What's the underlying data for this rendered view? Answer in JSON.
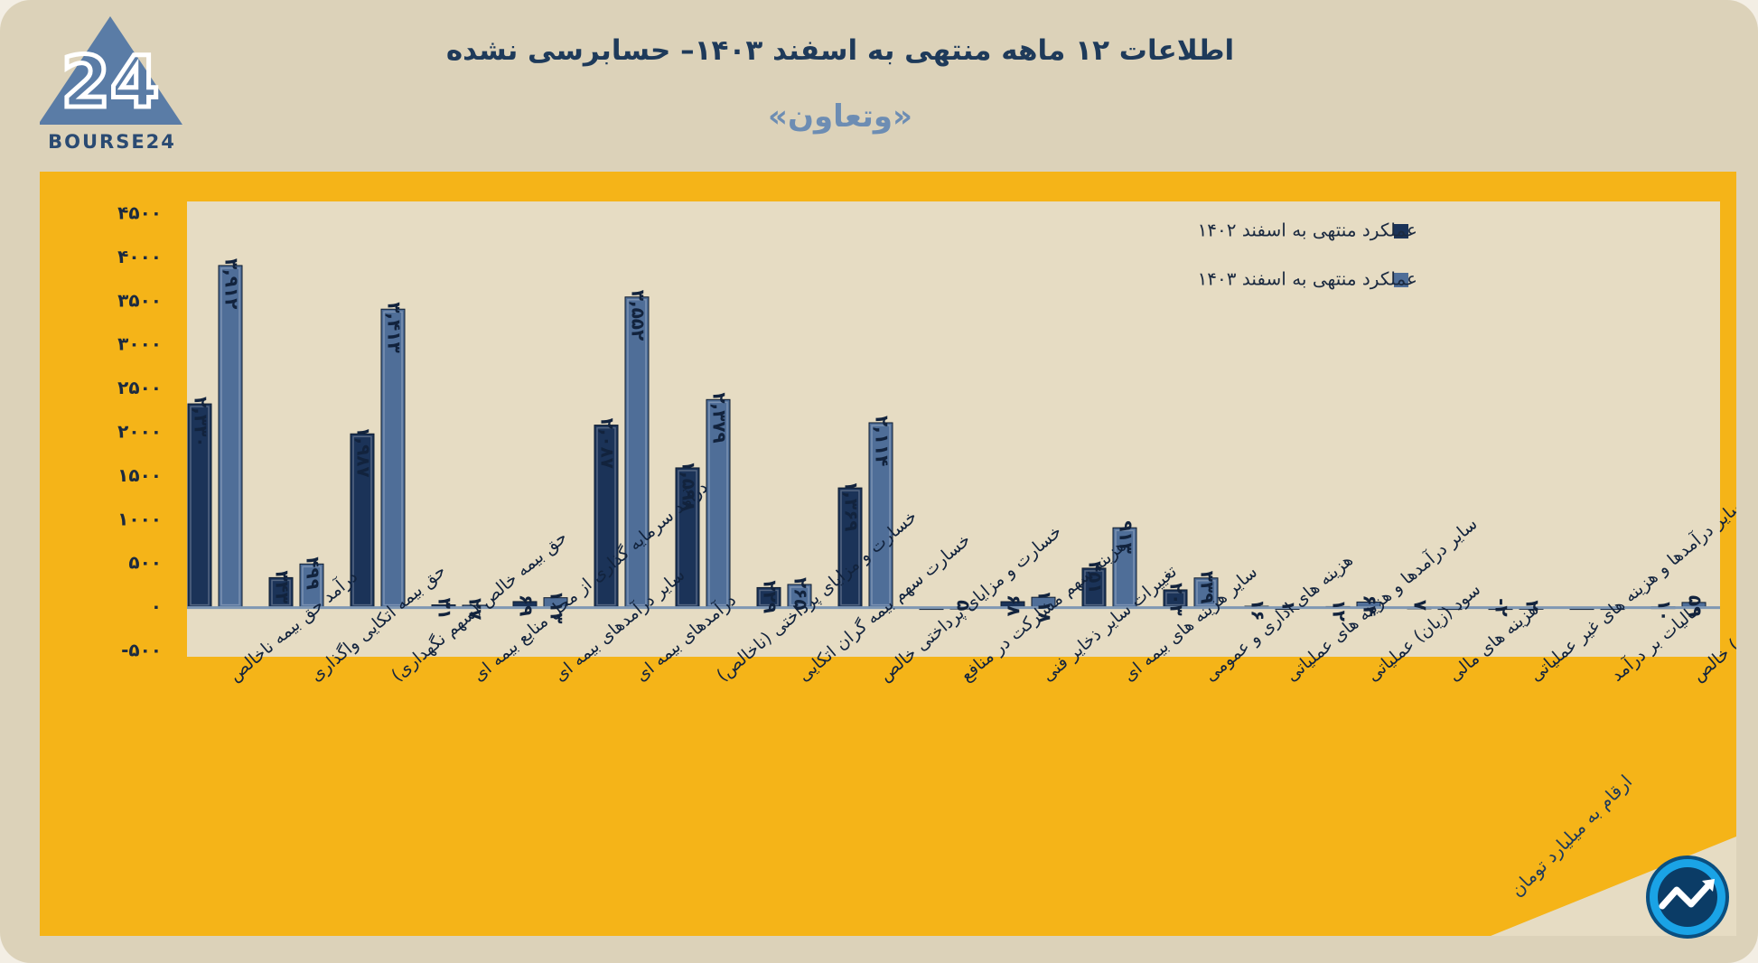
{
  "title": "اطلاعات ۱۲ ماهه منتهی به اسفند  ۱۴۰۳– حسابرسی نشده",
  "subtitle": "«وتعاون»",
  "brand": {
    "logo_text": "BOURSE24",
    "logo_numeral": "24"
  },
  "footnote": "ارقام به میلیارد تومان",
  "colors": {
    "frame": "#dcd2b9",
    "panel": "#f5b418",
    "plot": "#e6dcc3",
    "series_1402": "#1b3358",
    "series_1403": "#4f6e98",
    "title": "#1e3a5a",
    "subtitle": "#6d8db3"
  },
  "chart_data": {
    "type": "bar",
    "title": "",
    "xlabel": "",
    "ylabel": "",
    "ylim": [
      -500,
      4500
    ],
    "yticks": [
      -500,
      0,
      500,
      1000,
      1500,
      2000,
      2500,
      3000,
      3500,
      4000,
      4500
    ],
    "ytick_labels": [
      "-۵۰۰",
      "۰",
      "۵۰۰",
      "۱۰۰۰",
      "۱۵۰۰",
      "۲۰۰۰",
      "۲۵۰۰",
      "۳۰۰۰",
      "۳۵۰۰",
      "۴۰۰۰",
      "۴۵۰۰"
    ],
    "legend_position": "top-right",
    "categories": [
      "درآمد حق بیمه ناخالص",
      "حق بیمه اتکایی واگذاری",
      "حق بیمه خالص (سهم نگهداری)",
      "درآمد سرمایه گذاری از محل منابع بیمه ای",
      "سایر درآمدهای بیمه ای",
      "درآمدهای بیمه ای",
      "خسارت و مزایای پرداختی (ناخالص)",
      "خسارت سهم بیمه گران اتکایی",
      "خسارت و مزایای پرداختی خالص",
      "هزینه سهم مشارکت در منافع",
      "تغییرات سایر ذخایر فنی",
      "سایر هزینه های بیمه ای",
      "هزینه های اداری و عمومی",
      "سایر درآمدها و هزینه های عملیاتی",
      "سود (زیان) عملیاتی",
      "هزینه های مالی",
      "سایر درآمدها و هزینه های غیر عملیاتی",
      "مالیات بر درآمد",
      "سود (زیان) خالص"
    ],
    "series": [
      {
        "name": "عملکرد منتهی به اسفند ۱۴۰۲",
        "values": [
          2330,
          343,
          1987,
          31,
          69,
          2087,
          1598,
          229,
          1369,
          0,
          68,
          451,
          203,
          16,
          12,
          7,
          -2,
          0,
          10
        ],
        "labels": [
          "۲,۳۳۰",
          "۳۴۳",
          "۱,۹۸۷",
          "۳۱",
          "۶۹",
          "۲,۰۸۷",
          "۱,۵۹۸",
          "۲۲۹",
          "۱,۳۶۹",
          "",
          "۶۸",
          "۴۵۱",
          "۲۰۳",
          "۱۶",
          "۱۲",
          "۷",
          "-۲",
          "",
          "۱۰"
        ]
      },
      {
        "name": "عملکرد منتهی به اسفند ۱۴۰۳",
        "values": [
          3912,
          499,
          3413,
          27,
          113,
          3552,
          2379,
          265,
          2114,
          5,
          118,
          913,
          339,
          1,
          64,
          0,
          2,
          0,
          59
        ],
        "labels": [
          "۳,۹۱۲",
          "۴۹۹",
          "۳,۴۱۳",
          "۲۷",
          "۱۱۳",
          "۳,۵۵۲",
          "۲,۳۷۹",
          "۲۶۵",
          "۲,۱۱۴",
          "۵",
          "۱۱۸",
          "۹۱۳",
          "۳۳۹",
          "۱",
          "۶۴",
          "",
          "۲",
          "",
          "۵۹"
        ]
      }
    ]
  }
}
